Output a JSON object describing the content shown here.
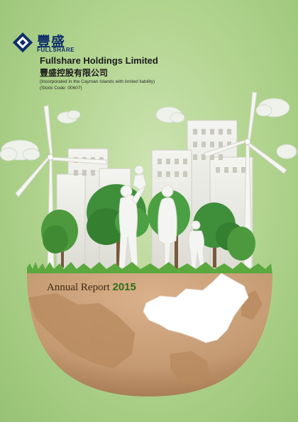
{
  "logo": {
    "chinese_name": "豐盛",
    "english_short": "FULLSHARE",
    "brand_color": "#0d2d6b"
  },
  "company": {
    "name_en": "Fullshare Holdings Limited",
    "name_cn": "豐盛控股有限公司",
    "incorporation_note": "(Incorporated in the Cayman Islands with limited liability)",
    "stock_code": "(Stock Code: 00607)"
  },
  "report": {
    "title": "Annual Report",
    "year": "2015"
  },
  "colors": {
    "background": "#b3d591",
    "globe": "#c49a72",
    "trees": "#3f8f3a",
    "grass": "#5aa83e"
  }
}
